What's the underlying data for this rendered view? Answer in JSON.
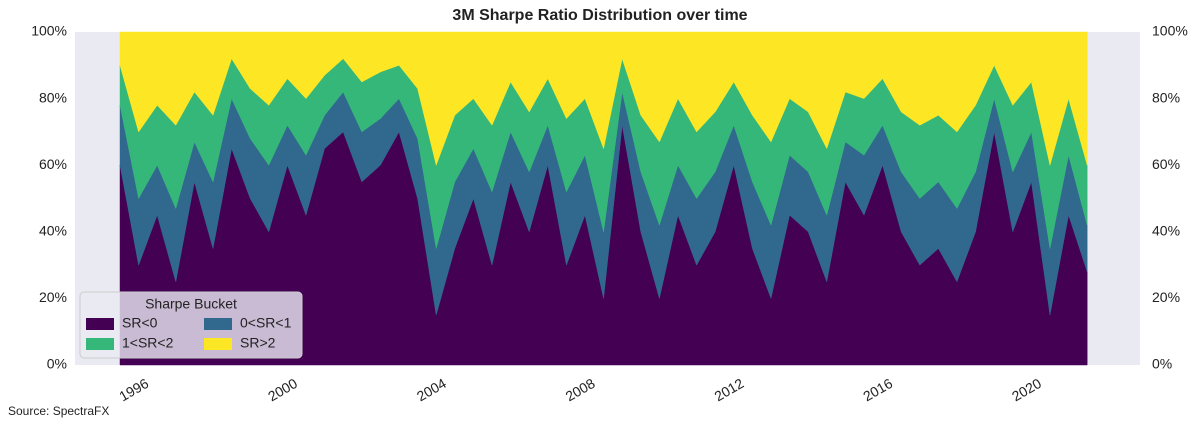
{
  "chart_data": {
    "type": "stacked_area",
    "title": "3M Sharpe Ratio Distribution over time",
    "source": "Source: SpectraFX",
    "legend_title": "Sharpe Bucket",
    "legend": "lower left",
    "x": [
      1995.25,
      1995.75,
      1996.25,
      1996.75,
      1997.25,
      1997.75,
      1998.25,
      1998.75,
      1999.25,
      1999.75,
      2000.25,
      2000.75,
      2001.25,
      2001.75,
      2002.25,
      2002.75,
      2003.25,
      2003.75,
      2004.25,
      2004.75,
      2005.25,
      2005.75,
      2006.25,
      2006.75,
      2007.25,
      2007.75,
      2008.25,
      2008.75,
      2009.25,
      2009.75,
      2010.25,
      2010.75,
      2011.25,
      2011.75,
      2012.25,
      2012.75,
      2013.25,
      2013.75,
      2014.25,
      2014.75,
      2015.25,
      2015.75,
      2016.25,
      2016.75,
      2017.25,
      2017.75,
      2018.25,
      2018.75,
      2019.25,
      2019.75,
      2020.25,
      2020.75,
      2021.25
    ],
    "xlim": [
      1994.04,
      2022.67
    ],
    "xticks": [
      1996,
      2000,
      2004,
      2008,
      2012,
      2016,
      2020
    ],
    "ylim": [
      0,
      100
    ],
    "yticks": [
      {
        "value": 0,
        "label": "0%"
      },
      {
        "value": 20,
        "label": "20%"
      },
      {
        "value": 40,
        "label": "40%"
      },
      {
        "value": 60,
        "label": "60%"
      },
      {
        "value": 80,
        "label": "80%"
      },
      {
        "value": 100,
        "label": "100%"
      }
    ],
    "series": [
      {
        "name": "SR<0",
        "color": "#440154",
        "values": [
          60,
          30,
          45,
          25,
          55,
          35,
          65,
          50,
          40,
          60,
          45,
          65,
          70,
          55,
          60,
          70,
          50,
          15,
          35,
          50,
          30,
          55,
          40,
          60,
          30,
          45,
          20,
          72,
          40,
          20,
          45,
          30,
          40,
          60,
          35,
          20,
          45,
          40,
          25,
          55,
          45,
          60,
          40,
          30,
          35,
          25,
          40,
          70,
          40,
          55,
          15,
          45,
          28
        ]
      },
      {
        "name": "0<SR<1",
        "color": "#31688e",
        "values": [
          18,
          20,
          15,
          22,
          12,
          20,
          15,
          18,
          20,
          12,
          18,
          10,
          12,
          15,
          14,
          10,
          18,
          20,
          20,
          15,
          22,
          15,
          18,
          12,
          22,
          18,
          20,
          10,
          18,
          22,
          15,
          20,
          18,
          12,
          20,
          22,
          18,
          18,
          20,
          12,
          18,
          12,
          18,
          20,
          20,
          22,
          18,
          10,
          18,
          15,
          20,
          18,
          14
        ]
      },
      {
        "name": "1<SR<2",
        "color": "#35b779",
        "values": [
          12,
          20,
          18,
          25,
          15,
          20,
          12,
          15,
          18,
          14,
          17,
          12,
          10,
          15,
          14,
          10,
          15,
          25,
          20,
          15,
          20,
          15,
          18,
          14,
          22,
          17,
          25,
          10,
          17,
          25,
          20,
          20,
          18,
          13,
          20,
          25,
          17,
          18,
          20,
          15,
          17,
          14,
          18,
          22,
          20,
          23,
          20,
          10,
          20,
          15,
          25,
          17,
          18
        ]
      },
      {
        "name": "SR>2",
        "color": "#fde725",
        "values": [
          10,
          30,
          22,
          28,
          18,
          25,
          8,
          17,
          22,
          14,
          20,
          13,
          8,
          15,
          12,
          10,
          17,
          40,
          25,
          20,
          28,
          15,
          24,
          14,
          26,
          20,
          35,
          8,
          25,
          33,
          20,
          30,
          24,
          15,
          25,
          33,
          20,
          24,
          35,
          18,
          20,
          14,
          24,
          28,
          25,
          30,
          22,
          10,
          22,
          15,
          40,
          20,
          40
        ]
      }
    ]
  }
}
